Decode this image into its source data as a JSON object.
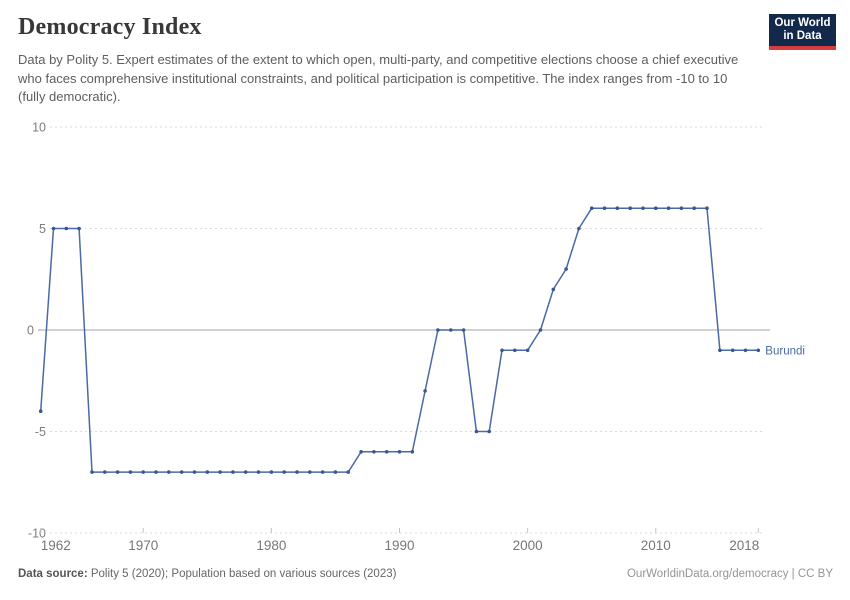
{
  "header": {
    "title": "Democracy Index",
    "subtitle": "Data by Polity 5. Expert estimates of the extent to which open, multi-party, and competitive elections choose a chief executive who faces comprehensive institutional constraints, and political participation is competitive. The index ranges from -10 to 10 (fully democratic).",
    "logo": {
      "line1": "Our World",
      "line2": "in Data",
      "bg_color": "#12294B",
      "accent_color": "#D93C3C"
    }
  },
  "chart_data": {
    "type": "line",
    "title": "Democracy Index",
    "entity": "Burundi",
    "series": [
      {
        "name": "Burundi",
        "points": [
          [
            1962,
            -4
          ],
          [
            1963,
            5
          ],
          [
            1964,
            5
          ],
          [
            1965,
            5
          ],
          [
            1966,
            -7
          ],
          [
            1967,
            -7
          ],
          [
            1968,
            -7
          ],
          [
            1969,
            -7
          ],
          [
            1970,
            -7
          ],
          [
            1971,
            -7
          ],
          [
            1972,
            -7
          ],
          [
            1973,
            -7
          ],
          [
            1974,
            -7
          ],
          [
            1975,
            -7
          ],
          [
            1976,
            -7
          ],
          [
            1977,
            -7
          ],
          [
            1978,
            -7
          ],
          [
            1979,
            -7
          ],
          [
            1980,
            -7
          ],
          [
            1981,
            -7
          ],
          [
            1982,
            -7
          ],
          [
            1983,
            -7
          ],
          [
            1984,
            -7
          ],
          [
            1985,
            -7
          ],
          [
            1986,
            -7
          ],
          [
            1987,
            -6
          ],
          [
            1988,
            -6
          ],
          [
            1989,
            -6
          ],
          [
            1990,
            -6
          ],
          [
            1991,
            -6
          ],
          [
            1992,
            -3
          ],
          [
            1993,
            0
          ],
          [
            1994,
            0
          ],
          [
            1995,
            0
          ],
          [
            1996,
            -5
          ],
          [
            1997,
            -5
          ],
          [
            1998,
            -1
          ],
          [
            1999,
            -1
          ],
          [
            2000,
            -1
          ],
          [
            2001,
            0
          ],
          [
            2002,
            2
          ],
          [
            2003,
            3
          ],
          [
            2004,
            5
          ],
          [
            2005,
            6
          ],
          [
            2006,
            6
          ],
          [
            2007,
            6
          ],
          [
            2008,
            6
          ],
          [
            2009,
            6
          ],
          [
            2010,
            6
          ],
          [
            2011,
            6
          ],
          [
            2012,
            6
          ],
          [
            2013,
            6
          ],
          [
            2014,
            6
          ],
          [
            2015,
            -1
          ],
          [
            2016,
            -1
          ],
          [
            2017,
            -1
          ],
          [
            2018,
            -1
          ]
        ]
      }
    ],
    "xlim": [
      1962,
      2018
    ],
    "ylim": [
      -10,
      10
    ],
    "yticks": [
      10,
      5,
      0,
      -5,
      -10
    ],
    "xticks": [
      1962,
      1970,
      1980,
      1990,
      2000,
      2010,
      2018
    ],
    "grid": "horizontal-dashed",
    "legend_position": "end-of-line-label",
    "line_color": "#4A69A5",
    "dot_color": "#3A5795",
    "axis_label_color": "#7d7d7d"
  },
  "footer": {
    "source_label": "Data source:",
    "source_text": " Polity 5 (2020); Population based on various sources (2023)",
    "link_text": "OurWorldinData.org/democracy | CC BY"
  }
}
